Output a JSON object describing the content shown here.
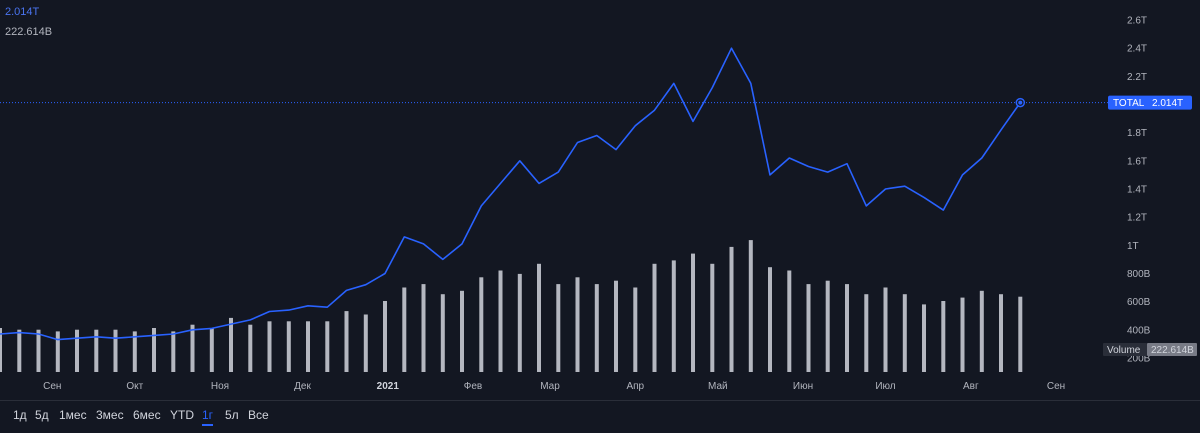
{
  "legend": {
    "total_value": "2.014T",
    "volume_value": "222.614B"
  },
  "badges": {
    "total_label": "TOTAL",
    "total_value": "2.014T",
    "volume_label": "Volume",
    "volume_value": "222.614B"
  },
  "ranges": [
    "1д",
    "5д",
    "1мес",
    "3мес",
    "6мес",
    "YTD",
    "1г",
    "5л",
    "Все"
  ],
  "active_range": "1г",
  "colors": {
    "background": "#131722",
    "line": "#2962ff",
    "volume_bar": "#d1d4dc",
    "badge": "#2962ff",
    "text": "#b2b5be"
  },
  "chart_data": {
    "type": "line",
    "x_axis": {
      "tick_labels": [
        "Сен",
        "Окт",
        "Ноя",
        "Дек",
        "2021",
        "Фев",
        "Мар",
        "Апр",
        "Май",
        "Июн",
        "Июл",
        "Авг",
        "Сен"
      ],
      "range": [
        "2020-08-13",
        "2021-09-17"
      ]
    },
    "y_axis": {
      "position": "right",
      "tick_labels": [
        "200B",
        "400B",
        "600B",
        "800B",
        "1T",
        "1.2T",
        "1.4T",
        "1.6T",
        "1.8T",
        "2T",
        "2.2T",
        "2.4T",
        "2.6T"
      ],
      "range": [
        0.1,
        2.7
      ]
    },
    "series": [
      {
        "name": "TOTAL",
        "last_value": "2.014T",
        "x": [
          "2020-08-13",
          "2020-08-20",
          "2020-08-27",
          "2020-09-03",
          "2020-09-10",
          "2020-09-17",
          "2020-09-24",
          "2020-10-01",
          "2020-10-08",
          "2020-10-15",
          "2020-10-22",
          "2020-10-29",
          "2020-11-05",
          "2020-11-12",
          "2020-11-19",
          "2020-11-26",
          "2020-12-03",
          "2020-12-10",
          "2020-12-17",
          "2020-12-24",
          "2020-12-31",
          "2021-01-07",
          "2021-01-14",
          "2021-01-21",
          "2021-01-28",
          "2021-02-04",
          "2021-02-11",
          "2021-02-18",
          "2021-02-25",
          "2021-03-04",
          "2021-03-11",
          "2021-03-18",
          "2021-03-25",
          "2021-04-01",
          "2021-04-08",
          "2021-04-15",
          "2021-04-22",
          "2021-04-29",
          "2021-05-06",
          "2021-05-13",
          "2021-05-20",
          "2021-05-27",
          "2021-06-03",
          "2021-06-10",
          "2021-06-17",
          "2021-06-24",
          "2021-07-01",
          "2021-07-08",
          "2021-07-15",
          "2021-07-22",
          "2021-07-29",
          "2021-08-05",
          "2021-08-12",
          "2021-08-19"
        ],
        "y": [
          0.37,
          0.38,
          0.37,
          0.33,
          0.34,
          0.35,
          0.34,
          0.35,
          0.36,
          0.37,
          0.4,
          0.41,
          0.44,
          0.47,
          0.53,
          0.54,
          0.57,
          0.56,
          0.68,
          0.72,
          0.8,
          1.06,
          1.01,
          0.9,
          1.01,
          1.28,
          1.44,
          1.6,
          1.44,
          1.52,
          1.73,
          1.78,
          1.68,
          1.85,
          1.96,
          2.15,
          1.88,
          2.12,
          2.4,
          2.15,
          1.5,
          1.62,
          1.56,
          1.52,
          1.58,
          1.28,
          1.4,
          1.42,
          1.34,
          1.25,
          1.5,
          1.62,
          1.82,
          2.014
        ]
      }
    ],
    "volume": {
      "name": "Volume",
      "unit": "B",
      "last_value": "222.614B",
      "x": [
        "2020-08-13",
        "2020-08-20",
        "2020-08-27",
        "2020-09-03",
        "2020-09-10",
        "2020-09-17",
        "2020-09-24",
        "2020-10-01",
        "2020-10-08",
        "2020-10-15",
        "2020-10-22",
        "2020-10-29",
        "2020-11-05",
        "2020-11-12",
        "2020-11-19",
        "2020-11-26",
        "2020-12-03",
        "2020-12-10",
        "2020-12-17",
        "2020-12-24",
        "2020-12-31",
        "2021-01-07",
        "2021-01-14",
        "2021-01-21",
        "2021-01-28",
        "2021-02-04",
        "2021-02-11",
        "2021-02-18",
        "2021-02-25",
        "2021-03-04",
        "2021-03-11",
        "2021-03-18",
        "2021-03-25",
        "2021-04-01",
        "2021-04-08",
        "2021-04-15",
        "2021-04-22",
        "2021-04-29",
        "2021-05-06",
        "2021-05-13",
        "2021-05-20",
        "2021-05-27",
        "2021-06-03",
        "2021-06-10",
        "2021-06-17",
        "2021-06-24",
        "2021-07-01",
        "2021-07-08",
        "2021-07-15",
        "2021-07-22",
        "2021-07-29",
        "2021-08-05",
        "2021-08-12",
        "2021-08-19"
      ],
      "values": [
        130,
        125,
        125,
        120,
        125,
        125,
        125,
        120,
        130,
        120,
        140,
        130,
        160,
        140,
        150,
        150,
        150,
        150,
        180,
        170,
        210,
        250,
        260,
        230,
        240,
        280,
        300,
        290,
        320,
        260,
        280,
        260,
        270,
        250,
        320,
        330,
        350,
        320,
        370,
        390,
        310,
        300,
        260,
        270,
        260,
        230,
        250,
        230,
        200,
        210,
        220,
        240,
        230,
        222.614
      ]
    }
  }
}
